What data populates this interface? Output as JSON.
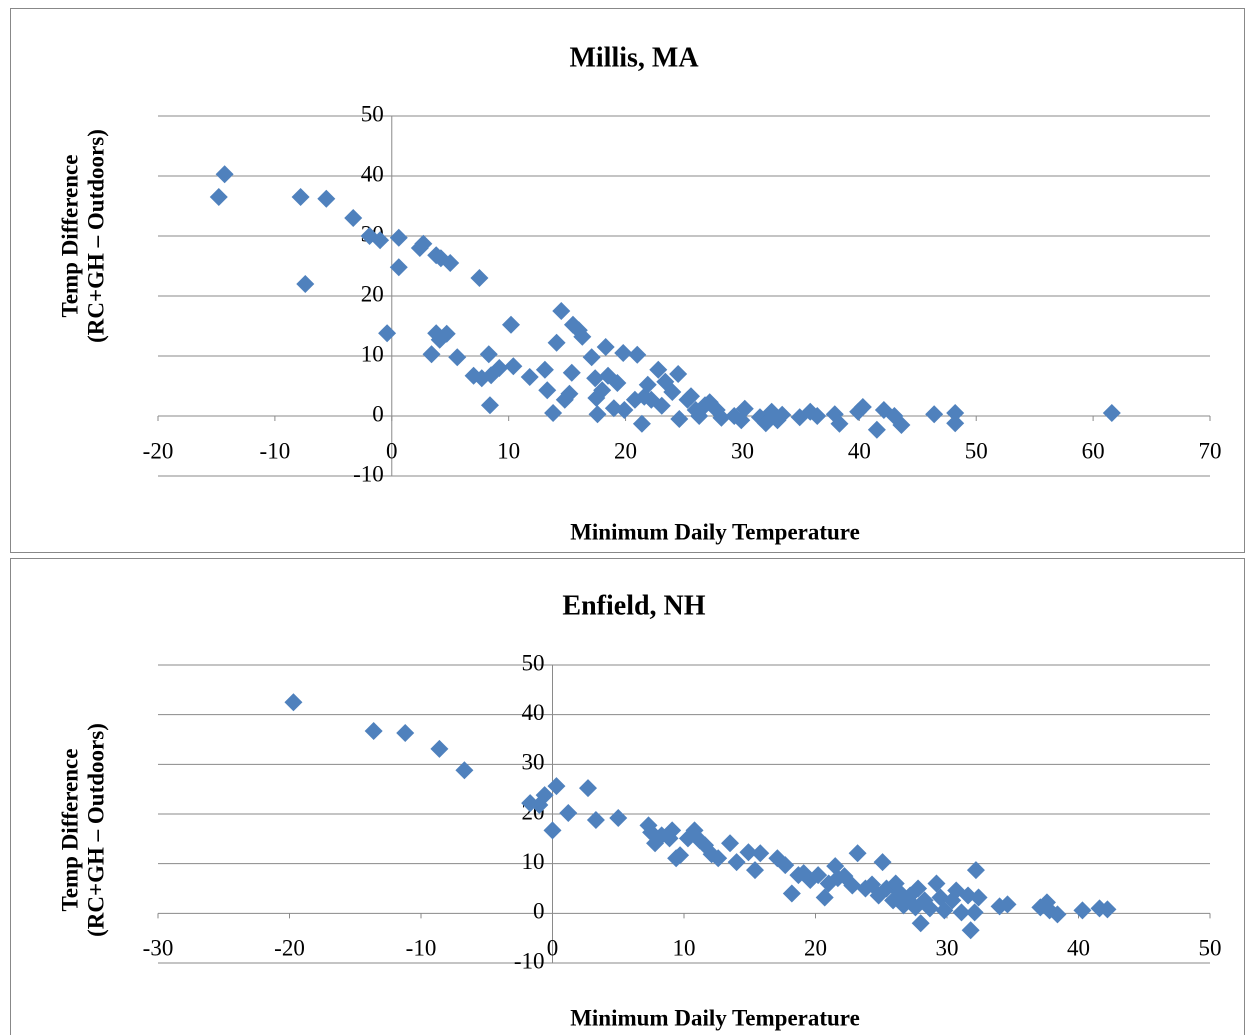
{
  "chart_data": [
    {
      "type": "scatter",
      "title": "Millis, MA",
      "x_label": "Minimum Daily Temperature",
      "y_label": [
        "Temp Difference",
        "(RC+GH – Outdoors)"
      ],
      "color": "#4f81bd",
      "grid": true,
      "xlim": [
        -20,
        70
      ],
      "xticks": [
        -20,
        -10,
        0,
        10,
        20,
        30,
        40,
        50,
        60,
        70
      ],
      "ylim": [
        -10,
        50
      ],
      "yticks": [
        -10,
        0,
        10,
        20,
        30,
        40,
        50
      ],
      "x": [
        -14.8,
        -14.3,
        -7.8,
        -7.4,
        -5.6,
        -3.3,
        -1.9,
        -1,
        -0.4,
        0.6,
        0.6,
        2.4,
        2.7,
        3.4,
        3.8,
        3.8,
        4.2,
        4.1,
        4.7,
        5,
        5.6,
        7,
        7.5,
        7.7,
        8.3,
        8.4,
        8.5,
        9.2,
        10.2,
        10.4,
        11.8,
        13.1,
        13.3,
        13.8,
        14.1,
        14.5,
        14.8,
        15.2,
        15.4,
        15.5,
        16,
        16.3,
        17.1,
        17.4,
        17.5,
        17.6,
        18,
        18.3,
        18.5,
        19,
        19.3,
        19.8,
        19.9,
        20.8,
        21,
        21.4,
        21.6,
        21.9,
        22.2,
        22.8,
        23.1,
        23.4,
        24,
        24.5,
        24.6,
        25.3,
        25.6,
        26,
        26.3,
        26.8,
        27.2,
        27.8,
        28.2,
        29.3,
        29.9,
        30.2,
        31.5,
        32,
        32.5,
        33,
        33.4,
        34.9,
        35.8,
        36.4,
        37.9,
        38.3,
        39.9,
        40.3,
        41.5,
        42.1,
        43,
        43.6,
        46.4,
        48.2,
        48.2,
        61.6
      ],
      "values": [
        36.5,
        40.3,
        36.5,
        22,
        36.2,
        33,
        30,
        29.3,
        13.8,
        29.7,
        24.8,
        28,
        28.7,
        10.3,
        26.8,
        13.8,
        26.3,
        12.7,
        13.7,
        25.5,
        9.8,
        6.7,
        23,
        6.3,
        10.3,
        1.8,
        6.8,
        8,
        15.2,
        8.3,
        6.5,
        7.7,
        4.3,
        0.5,
        12.2,
        17.5,
        2.7,
        3.7,
        7.2,
        15.2,
        14.3,
        13.2,
        9.8,
        6.3,
        3,
        0.3,
        4.3,
        11.5,
        6.7,
        1.3,
        5.5,
        10.5,
        1,
        2.7,
        10.2,
        -1.3,
        3.2,
        5.2,
        2.7,
        7.7,
        1.7,
        5.7,
        4,
        7,
        -0.5,
        2.7,
        3.3,
        1,
        0,
        1.8,
        2.3,
        1,
        -0.3,
        0,
        -0.7,
        1.2,
        -0.2,
        -1.2,
        0.7,
        -0.7,
        0.2,
        -0.2,
        0.7,
        0,
        0.3,
        -1.3,
        0.7,
        1.5,
        -2.3,
        1,
        0,
        -1.5,
        0.3,
        0.5,
        -1.2,
        0.5
      ]
    },
    {
      "type": "scatter",
      "title": "Enfield, NH",
      "x_label": "Minimum Daily Temperature",
      "y_label": [
        "Temp Difference",
        "(RC+GH – Outdoors)"
      ],
      "color": "#4f81bd",
      "grid": true,
      "xlim": [
        -30,
        50
      ],
      "xticks": [
        -30,
        -20,
        -10,
        0,
        10,
        20,
        30,
        40,
        50
      ],
      "ylim": [
        -10,
        50
      ],
      "yticks": [
        -10,
        0,
        10,
        20,
        30,
        40,
        50
      ],
      "x": [
        -19.7,
        -13.6,
        -11.2,
        -8.6,
        -6.7,
        -1.7,
        -1,
        -0.6,
        0,
        0.3,
        1.2,
        2.7,
        3.3,
        5,
        7.3,
        7.5,
        7.8,
        8.3,
        8.9,
        9.4,
        9.7,
        9.1,
        10.3,
        10.8,
        11.2,
        11.6,
        12.1,
        12.6,
        13.5,
        14,
        14.9,
        15.4,
        15.8,
        17.1,
        17.7,
        18.2,
        18.7,
        19.1,
        19.6,
        20.2,
        20.7,
        21,
        21.5,
        21.7,
        22.2,
        22.8,
        23.2,
        23.8,
        24.3,
        24.8,
        25.1,
        25.4,
        25.9,
        26.1,
        26.4,
        26.7,
        27.2,
        27.6,
        27.8,
        28,
        28.3,
        28.7,
        29.2,
        29.5,
        29.8,
        30.4,
        30.7,
        31.1,
        31.6,
        31.8,
        32.1,
        32.2,
        32.4,
        34,
        34.6,
        37.1,
        37.6,
        37.8,
        38.4,
        40.3,
        41.6,
        42.2
      ],
      "values": [
        42.5,
        36.7,
        36.3,
        33.1,
        28.8,
        22.2,
        21.8,
        23.8,
        16.7,
        25.6,
        20.2,
        25.2,
        18.8,
        19.2,
        17.7,
        16.3,
        14.1,
        15.7,
        15.1,
        11.1,
        11.7,
        16.7,
        15.1,
        16.7,
        14.7,
        13.7,
        11.9,
        11.1,
        14.1,
        10.3,
        12.3,
        8.7,
        12.1,
        11.1,
        9.7,
        4,
        7.7,
        8.1,
        6.7,
        7.7,
        3.2,
        6,
        9.5,
        7.1,
        7.5,
        5.6,
        12.1,
        5,
        5.8,
        3.6,
        10.3,
        5,
        2.6,
        6,
        4.2,
        1.6,
        3.6,
        1.2,
        5,
        -2,
        2.6,
        1,
        6,
        3.2,
        0.6,
        2.6,
        4.6,
        0.2,
        3.6,
        -3.4,
        0.2,
        8.7,
        3.2,
        1.4,
        1.8,
        1.2,
        2.2,
        0.6,
        -0.2,
        0.6,
        1,
        0.8
      ]
    }
  ]
}
